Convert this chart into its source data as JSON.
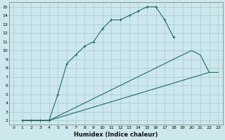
{
  "xlabel": "Humidex (Indice chaleur)",
  "bg_color": "#cce8ec",
  "grid_color": "#aacdd4",
  "line_color": "#1a6b6b",
  "xlim": [
    -0.5,
    23.5
  ],
  "ylim": [
    1.5,
    15.5
  ],
  "xticks": [
    0,
    1,
    2,
    3,
    4,
    5,
    6,
    7,
    8,
    9,
    10,
    11,
    12,
    13,
    14,
    15,
    16,
    17,
    18,
    19,
    20,
    21,
    22,
    23
  ],
  "yticks": [
    2,
    3,
    4,
    5,
    6,
    7,
    8,
    9,
    10,
    11,
    12,
    13,
    14,
    15
  ],
  "curve1_x": [
    1,
    2,
    3,
    4,
    5,
    6,
    7,
    8,
    9,
    10,
    11,
    12,
    13,
    14,
    15,
    16,
    17,
    18
  ],
  "curve1_y": [
    2,
    2,
    2,
    2,
    5,
    8.5,
    9.5,
    10.5,
    11,
    12.5,
    13.5,
    13.5,
    14,
    14.5,
    15,
    15,
    13.5,
    11.5
  ],
  "curve2_x": [
    1,
    3,
    4,
    5,
    19,
    20,
    21,
    22
  ],
  "curve2_y": [
    2,
    2,
    2,
    2.5,
    9.5,
    10,
    9.5,
    7.5
  ],
  "curve3_x": [
    1,
    3,
    4,
    22,
    23
  ],
  "curve3_y": [
    2,
    2,
    2,
    7.5,
    7.5
  ]
}
